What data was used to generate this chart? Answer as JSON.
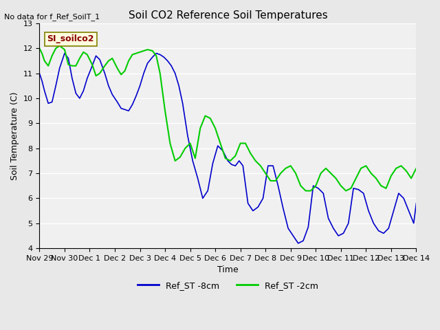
{
  "title": "Soil CO2 Reference Soil Temperatures",
  "xlabel": "Time",
  "ylabel": "Soil Temperature (C)",
  "note": "No data for f_Ref_SoilT_1",
  "site_label": "SI_soilco2",
  "ylim": [
    4.0,
    13.0
  ],
  "yticks": [
    4.0,
    5.0,
    6.0,
    7.0,
    8.0,
    9.0,
    10.0,
    11.0,
    12.0,
    13.0
  ],
  "xtick_labels": [
    "Nov 29",
    "Nov 30",
    "Dec 1",
    "Dec 2",
    "Dec 3",
    "Dec 4",
    "Dec 5",
    "Dec 6",
    "Dec 7",
    "Dec 8",
    "Dec 9",
    "Dec 10",
    "Dec 11",
    "Dec 12",
    "Dec 13",
    "Dec 14"
  ],
  "xtick_positions": [
    0,
    1,
    2,
    3,
    4,
    5,
    6,
    7,
    8,
    9,
    10,
    11,
    12,
    13,
    14,
    15
  ],
  "blue_label": "Ref_ST -8cm",
  "green_label": "Ref_ST -2cm",
  "blue_color": "#0000cc",
  "green_color": "#00cc00",
  "bg_color": "#e8e8e8",
  "plot_bg_color": "#f0f0f0",
  "grid_color": "#ffffff",
  "blue_x": [
    0.0,
    0.1,
    0.2,
    0.35,
    0.5,
    0.65,
    0.8,
    1.0,
    1.15,
    1.3,
    1.45,
    1.6,
    1.75,
    1.9,
    2.1,
    2.25,
    2.4,
    2.6,
    2.75,
    2.9,
    3.1,
    3.25,
    3.4,
    3.55,
    3.7,
    3.85,
    4.0,
    4.15,
    4.3,
    4.5,
    4.65,
    4.8,
    4.95,
    5.1,
    5.25,
    5.4,
    5.55,
    5.7,
    5.9,
    6.1,
    6.3,
    6.5,
    6.7,
    6.9,
    7.1,
    7.3,
    7.5,
    7.65,
    7.8,
    7.95,
    8.1,
    8.3,
    8.5,
    8.7,
    8.9,
    9.1,
    9.3,
    9.5,
    9.7,
    9.9,
    10.1,
    10.3,
    10.5,
    10.7,
    10.9,
    11.1,
    11.3,
    11.5,
    11.7,
    11.9,
    12.1,
    12.3,
    12.5,
    12.7,
    12.9,
    13.1,
    13.3,
    13.5,
    13.7,
    13.9,
    14.1,
    14.3,
    14.5,
    14.7,
    14.9,
    15.0
  ],
  "blue_y": [
    11.0,
    10.7,
    10.3,
    9.8,
    9.85,
    10.5,
    11.2,
    11.8,
    11.6,
    10.8,
    10.2,
    10.0,
    10.3,
    10.8,
    11.3,
    11.7,
    11.55,
    11.0,
    10.5,
    10.15,
    9.85,
    9.6,
    9.55,
    9.5,
    9.75,
    10.1,
    10.5,
    11.0,
    11.4,
    11.65,
    11.8,
    11.75,
    11.65,
    11.5,
    11.3,
    11.0,
    10.5,
    9.8,
    8.5,
    7.5,
    6.8,
    6.0,
    6.3,
    7.4,
    8.1,
    7.9,
    7.5,
    7.35,
    7.3,
    7.5,
    7.3,
    5.8,
    5.5,
    5.65,
    6.0,
    7.3,
    7.3,
    6.5,
    5.6,
    4.8,
    4.5,
    4.2,
    4.3,
    4.85,
    6.5,
    6.4,
    6.2,
    5.2,
    4.8,
    4.5,
    4.6,
    5.0,
    6.4,
    6.35,
    6.2,
    5.5,
    5.0,
    4.7,
    4.6,
    4.8,
    5.5,
    6.2,
    6.0,
    5.5,
    5.0,
    5.8
  ],
  "green_x": [
    0.0,
    0.1,
    0.2,
    0.35,
    0.5,
    0.65,
    0.8,
    1.0,
    1.15,
    1.3,
    1.45,
    1.6,
    1.75,
    1.9,
    2.1,
    2.25,
    2.4,
    2.6,
    2.75,
    2.9,
    3.1,
    3.25,
    3.4,
    3.55,
    3.7,
    3.85,
    4.0,
    4.15,
    4.3,
    4.5,
    4.65,
    4.8,
    5.0,
    5.2,
    5.4,
    5.6,
    5.8,
    6.0,
    6.2,
    6.4,
    6.6,
    6.8,
    7.0,
    7.2,
    7.4,
    7.6,
    7.8,
    8.0,
    8.2,
    8.4,
    8.6,
    8.8,
    9.0,
    9.2,
    9.4,
    9.6,
    9.8,
    10.0,
    10.2,
    10.4,
    10.6,
    10.8,
    11.0,
    11.2,
    11.4,
    11.6,
    11.8,
    12.0,
    12.2,
    12.4,
    12.6,
    12.8,
    13.0,
    13.2,
    13.4,
    13.6,
    13.8,
    14.0,
    14.2,
    14.4,
    14.6,
    14.8,
    15.0
  ],
  "green_y": [
    12.0,
    11.8,
    11.5,
    11.3,
    11.7,
    12.0,
    12.1,
    11.95,
    11.35,
    11.3,
    11.3,
    11.6,
    11.85,
    11.75,
    11.35,
    10.9,
    11.0,
    11.3,
    11.5,
    11.6,
    11.2,
    10.95,
    11.1,
    11.5,
    11.75,
    11.8,
    11.85,
    11.9,
    11.95,
    11.9,
    11.7,
    11.0,
    9.5,
    8.2,
    7.5,
    7.65,
    8.0,
    8.2,
    7.6,
    8.8,
    9.3,
    9.2,
    8.8,
    8.2,
    7.6,
    7.5,
    7.7,
    8.2,
    8.2,
    7.8,
    7.5,
    7.3,
    7.0,
    6.7,
    6.7,
    7.0,
    7.2,
    7.3,
    7.0,
    6.5,
    6.3,
    6.3,
    6.5,
    7.0,
    7.2,
    7.0,
    6.8,
    6.5,
    6.3,
    6.4,
    6.8,
    7.2,
    7.3,
    7.0,
    6.8,
    6.5,
    6.4,
    6.9,
    7.2,
    7.3,
    7.1,
    6.8,
    7.2
  ]
}
